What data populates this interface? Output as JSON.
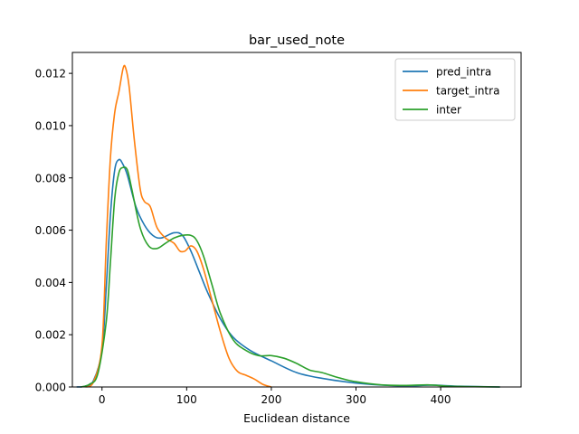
{
  "chart_data": {
    "type": "line",
    "title": "bar_used_note",
    "xlabel": "Euclidean distance",
    "ylabel": "",
    "xlim": [
      -35,
      495
    ],
    "ylim": [
      0,
      0.0128
    ],
    "xticks": [
      0,
      100,
      200,
      300,
      400
    ],
    "yticks": [
      0,
      0.002,
      0.004,
      0.006,
      0.008,
      0.01,
      0.012
    ],
    "xtick_labels": [
      "0",
      "100",
      "200",
      "300",
      "400"
    ],
    "ytick_labels": [
      "0.000",
      "0.002",
      "0.004",
      "0.006",
      "0.008",
      "0.010",
      "0.012"
    ],
    "legend": "top-right",
    "grid": false,
    "series": [
      {
        "name": "pred_intra",
        "color": "#1f77b4",
        "points": [
          [
            -30,
            0
          ],
          [
            -20,
            3e-05
          ],
          [
            -10,
            0.00025
          ],
          [
            0,
            0.0014
          ],
          [
            5,
            0.0038
          ],
          [
            10,
            0.0066
          ],
          [
            15,
            0.0083
          ],
          [
            20,
            0.0087
          ],
          [
            25,
            0.0085
          ],
          [
            30,
            0.0081
          ],
          [
            40,
            0.0069
          ],
          [
            50,
            0.0062
          ],
          [
            60,
            0.0058
          ],
          [
            70,
            0.0057
          ],
          [
            85,
            0.0059
          ],
          [
            95,
            0.0058
          ],
          [
            105,
            0.0052
          ],
          [
            115,
            0.0044
          ],
          [
            125,
            0.0036
          ],
          [
            140,
            0.0026
          ],
          [
            155,
            0.0019
          ],
          [
            175,
            0.0014
          ],
          [
            200,
            0.001
          ],
          [
            230,
            0.00055
          ],
          [
            260,
            0.00033
          ],
          [
            300,
            0.00015
          ],
          [
            340,
            6e-05
          ],
          [
            370,
            5e-05
          ],
          [
            390,
            7e-05
          ],
          [
            420,
            3e-05
          ],
          [
            470,
            0
          ]
        ]
      },
      {
        "name": "target_intra",
        "color": "#ff7f0e",
        "points": [
          [
            -20,
            0
          ],
          [
            -10,
            0.0002
          ],
          [
            0,
            0.0016
          ],
          [
            5,
            0.0055
          ],
          [
            10,
            0.0088
          ],
          [
            15,
            0.0105
          ],
          [
            20,
            0.0113
          ],
          [
            25,
            0.0122
          ],
          [
            28,
            0.0122
          ],
          [
            32,
            0.0115
          ],
          [
            38,
            0.0095
          ],
          [
            45,
            0.0076
          ],
          [
            50,
            0.0071
          ],
          [
            57,
            0.0069
          ],
          [
            65,
            0.0061
          ],
          [
            75,
            0.0057
          ],
          [
            85,
            0.0055
          ],
          [
            92,
            0.0052
          ],
          [
            98,
            0.0052
          ],
          [
            105,
            0.0054
          ],
          [
            112,
            0.0052
          ],
          [
            120,
            0.0045
          ],
          [
            130,
            0.0033
          ],
          [
            140,
            0.0021
          ],
          [
            150,
            0.0011
          ],
          [
            160,
            0.0006
          ],
          [
            170,
            0.00045
          ],
          [
            180,
            0.0003
          ],
          [
            190,
            0.0001
          ],
          [
            200,
            0
          ]
        ]
      },
      {
        "name": "inter",
        "color": "#2ca02c",
        "points": [
          [
            -25,
            0
          ],
          [
            -15,
            0.0001
          ],
          [
            -5,
            0.0005
          ],
          [
            5,
            0.0025
          ],
          [
            10,
            0.0048
          ],
          [
            15,
            0.0072
          ],
          [
            20,
            0.0082
          ],
          [
            25,
            0.0084
          ],
          [
            30,
            0.0083
          ],
          [
            35,
            0.0076
          ],
          [
            45,
            0.0061
          ],
          [
            55,
            0.0054
          ],
          [
            65,
            0.0053
          ],
          [
            75,
            0.0055
          ],
          [
            85,
            0.0057
          ],
          [
            95,
            0.0058
          ],
          [
            105,
            0.0058
          ],
          [
            112,
            0.0056
          ],
          [
            120,
            0.005
          ],
          [
            130,
            0.0039
          ],
          [
            140,
            0.0028
          ],
          [
            155,
            0.0018
          ],
          [
            170,
            0.0014
          ],
          [
            185,
            0.0012
          ],
          [
            200,
            0.0012
          ],
          [
            215,
            0.0011
          ],
          [
            230,
            0.0009
          ],
          [
            245,
            0.00065
          ],
          [
            260,
            0.00055
          ],
          [
            280,
            0.00035
          ],
          [
            300,
            0.0002
          ],
          [
            330,
            8e-05
          ],
          [
            360,
            6e-05
          ],
          [
            385,
            8e-05
          ],
          [
            410,
            3e-05
          ],
          [
            440,
            1e-05
          ],
          [
            470,
            0
          ]
        ]
      }
    ]
  }
}
